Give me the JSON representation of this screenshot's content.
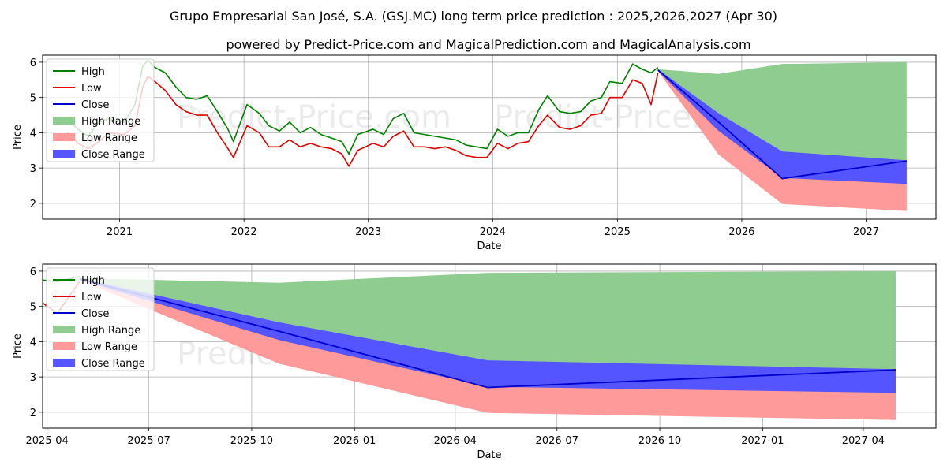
{
  "title": "Grupo Empresarial San José, S.A. (GSJ.MC) long term price prediction : 2025,2026,2027 (Apr 30)",
  "subtitle": "powered by Predict-Price.com and MagicalPrediction.com and MagicalAnalysis.com",
  "watermark": "Predict-Price.com",
  "colors": {
    "high": "#008000",
    "low": "#e00000",
    "close": "#0000d0",
    "high_range": "#8fcc8f",
    "low_range": "#ff9a9a",
    "close_range": "#5555ff"
  },
  "legend": {
    "placement": "top-left",
    "items": [
      {
        "key": "high",
        "label": "High",
        "kind": "line"
      },
      {
        "key": "low",
        "label": "Low",
        "kind": "line"
      },
      {
        "key": "close",
        "label": "Close",
        "kind": "line"
      },
      {
        "key": "high_range",
        "label": "High Range",
        "kind": "patch"
      },
      {
        "key": "low_range",
        "label": "Low Range",
        "kind": "patch"
      },
      {
        "key": "close_range",
        "label": "Close Range",
        "kind": "patch"
      }
    ]
  },
  "chart_data": [
    {
      "type": "line",
      "panel": "top",
      "xlabel": "Date",
      "ylabel": "Price",
      "xlim": [
        "2020-05-20",
        "2027-07-25"
      ],
      "ylim": [
        1.55,
        6.2
      ],
      "grid": true,
      "x_ticks": [
        "2021",
        "2022",
        "2023",
        "2024",
        "2025",
        "2026",
        "2027"
      ],
      "x_tick_dates": [
        "2021-01-01",
        "2022-01-01",
        "2023-01-01",
        "2024-01-01",
        "2025-01-01",
        "2026-01-01",
        "2027-01-01"
      ],
      "y_ticks": [
        2,
        3,
        4,
        5,
        6
      ],
      "history": [
        {
          "date": "2020-08-01",
          "high": 4.35,
          "low": 4.0,
          "close": 4.15
        },
        {
          "date": "2020-09-01",
          "high": 4.1,
          "low": 3.7,
          "close": 3.9
        },
        {
          "date": "2020-10-01",
          "high": 3.9,
          "low": 3.55,
          "close": 3.75
        },
        {
          "date": "2020-11-01",
          "high": 4.3,
          "low": 3.75,
          "close": 4.1
        },
        {
          "date": "2020-12-01",
          "high": 4.4,
          "low": 4.0,
          "close": 4.2
        },
        {
          "date": "2021-01-15",
          "high": 4.3,
          "low": 3.95,
          "close": 4.1
        },
        {
          "date": "2021-02-15",
          "high": 4.8,
          "low": 4.2,
          "close": 4.6
        },
        {
          "date": "2021-03-10",
          "high": 5.9,
          "low": 5.3,
          "close": 5.7
        },
        {
          "date": "2021-03-25",
          "high": 6.05,
          "low": 5.6,
          "close": 5.85
        },
        {
          "date": "2021-04-15",
          "high": 5.85,
          "low": 5.45,
          "close": 5.6
        },
        {
          "date": "2021-05-15",
          "high": 5.7,
          "low": 5.2,
          "close": 5.4
        },
        {
          "date": "2021-06-15",
          "high": 5.3,
          "low": 4.8,
          "close": 5.0
        },
        {
          "date": "2021-07-15",
          "high": 5.0,
          "low": 4.6,
          "close": 4.8
        },
        {
          "date": "2021-08-15",
          "high": 4.95,
          "low": 4.5,
          "close": 4.7
        },
        {
          "date": "2021-09-15",
          "high": 5.05,
          "low": 4.5,
          "close": 4.65
        },
        {
          "date": "2021-10-15",
          "high": 4.6,
          "low": 4.0,
          "close": 4.2
        },
        {
          "date": "2021-11-15",
          "high": 4.1,
          "low": 3.55,
          "close": 3.75
        },
        {
          "date": "2021-12-01",
          "high": 3.75,
          "low": 3.3,
          "close": 3.5
        },
        {
          "date": "2022-01-10",
          "high": 4.8,
          "low": 4.2,
          "close": 4.5
        },
        {
          "date": "2022-02-15",
          "high": 4.55,
          "low": 4.0,
          "close": 4.25
        },
        {
          "date": "2022-03-15",
          "high": 4.2,
          "low": 3.6,
          "close": 3.85
        },
        {
          "date": "2022-04-15",
          "high": 4.05,
          "low": 3.6,
          "close": 3.8
        },
        {
          "date": "2022-05-15",
          "high": 4.3,
          "low": 3.8,
          "close": 4.05
        },
        {
          "date": "2022-06-15",
          "high": 4.0,
          "low": 3.6,
          "close": 3.8
        },
        {
          "date": "2022-07-15",
          "high": 4.15,
          "low": 3.7,
          "close": 3.9
        },
        {
          "date": "2022-08-15",
          "high": 3.95,
          "low": 3.6,
          "close": 3.75
        },
        {
          "date": "2022-09-15",
          "high": 3.85,
          "low": 3.55,
          "close": 3.7
        },
        {
          "date": "2022-10-15",
          "high": 3.75,
          "low": 3.4,
          "close": 3.55
        },
        {
          "date": "2022-11-05",
          "high": 3.4,
          "low": 3.05,
          "close": 3.2
        },
        {
          "date": "2022-12-01",
          "high": 3.95,
          "low": 3.5,
          "close": 3.75
        },
        {
          "date": "2023-01-15",
          "high": 4.1,
          "low": 3.7,
          "close": 3.9
        },
        {
          "date": "2023-02-15",
          "high": 3.95,
          "low": 3.6,
          "close": 3.75
        },
        {
          "date": "2023-03-15",
          "high": 4.4,
          "low": 3.9,
          "close": 4.15
        },
        {
          "date": "2023-04-15",
          "high": 4.55,
          "low": 4.05,
          "close": 4.3
        },
        {
          "date": "2023-05-15",
          "high": 4.0,
          "low": 3.6,
          "close": 3.75
        },
        {
          "date": "2023-06-15",
          "high": 3.95,
          "low": 3.6,
          "close": 3.75
        },
        {
          "date": "2023-07-15",
          "high": 3.9,
          "low": 3.55,
          "close": 3.7
        },
        {
          "date": "2023-08-15",
          "high": 3.85,
          "low": 3.6,
          "close": 3.7
        },
        {
          "date": "2023-09-15",
          "high": 3.8,
          "low": 3.5,
          "close": 3.65
        },
        {
          "date": "2023-10-15",
          "high": 3.65,
          "low": 3.35,
          "close": 3.5
        },
        {
          "date": "2023-11-15",
          "high": 3.6,
          "low": 3.3,
          "close": 3.45
        },
        {
          "date": "2023-12-15",
          "high": 3.55,
          "low": 3.3,
          "close": 3.4
        },
        {
          "date": "2024-01-15",
          "high": 4.1,
          "low": 3.7,
          "close": 3.95
        },
        {
          "date": "2024-02-15",
          "high": 3.9,
          "low": 3.55,
          "close": 3.7
        },
        {
          "date": "2024-03-15",
          "high": 4.0,
          "low": 3.7,
          "close": 3.85
        },
        {
          "date": "2024-04-15",
          "high": 4.0,
          "low": 3.75,
          "close": 3.9
        },
        {
          "date": "2024-05-15",
          "high": 4.65,
          "low": 4.2,
          "close": 4.45
        },
        {
          "date": "2024-06-10",
          "high": 5.05,
          "low": 4.5,
          "close": 4.75
        },
        {
          "date": "2024-07-15",
          "high": 4.6,
          "low": 4.15,
          "close": 4.35
        },
        {
          "date": "2024-08-15",
          "high": 4.55,
          "low": 4.1,
          "close": 4.3
        },
        {
          "date": "2024-09-15",
          "high": 4.6,
          "low": 4.2,
          "close": 4.4
        },
        {
          "date": "2024-10-15",
          "high": 4.9,
          "low": 4.5,
          "close": 4.7
        },
        {
          "date": "2024-11-15",
          "high": 5.0,
          "low": 4.55,
          "close": 4.75
        },
        {
          "date": "2024-12-10",
          "high": 5.45,
          "low": 5.0,
          "close": 5.2
        },
        {
          "date": "2025-01-15",
          "high": 5.4,
          "low": 5.0,
          "close": 5.2
        },
        {
          "date": "2025-02-15",
          "high": 5.95,
          "low": 5.5,
          "close": 5.75
        },
        {
          "date": "2025-03-15",
          "high": 5.8,
          "low": 5.4,
          "close": 5.6
        },
        {
          "date": "2025-04-10",
          "high": 5.7,
          "low": 4.8,
          "close": 5.3
        },
        {
          "date": "2025-04-30",
          "high": 5.85,
          "low": 5.7,
          "close": 5.78
        }
      ],
      "prediction": [
        {
          "date": "2025-04-30",
          "high": 5.8,
          "low": 5.75,
          "close": 5.78,
          "close_hi": 5.8,
          "close_lo": 5.75
        },
        {
          "date": "2025-10-25",
          "high": 5.67,
          "low": 3.38,
          "close": 4.3,
          "close_hi": 4.55,
          "close_lo": 4.05
        },
        {
          "date": "2026-04-30",
          "high": 5.95,
          "low": 1.98,
          "close": 2.7,
          "close_hi": 3.47,
          "close_lo": 2.72
        },
        {
          "date": "2027-04-30",
          "high": 6.0,
          "low": 1.78,
          "close": 3.2,
          "close_hi": 3.22,
          "close_lo": 2.55
        }
      ]
    },
    {
      "type": "line",
      "panel": "bottom",
      "xlabel": "Date",
      "ylabel": "Price",
      "xlim": [
        "2025-03-28",
        "2027-06-05"
      ],
      "ylim": [
        1.55,
        6.2
      ],
      "grid": true,
      "x_ticks": [
        "2025-04",
        "2025-07",
        "2025-10",
        "2026-01",
        "2026-04",
        "2026-07",
        "2026-10",
        "2027-01",
        "2027-04"
      ],
      "x_tick_dates": [
        "2025-04-01",
        "2025-07-01",
        "2025-10-01",
        "2026-01-01",
        "2026-04-01",
        "2026-07-01",
        "2026-10-01",
        "2027-01-01",
        "2027-04-01"
      ],
      "y_ticks": [
        2,
        3,
        4,
        5,
        6
      ]
    }
  ]
}
